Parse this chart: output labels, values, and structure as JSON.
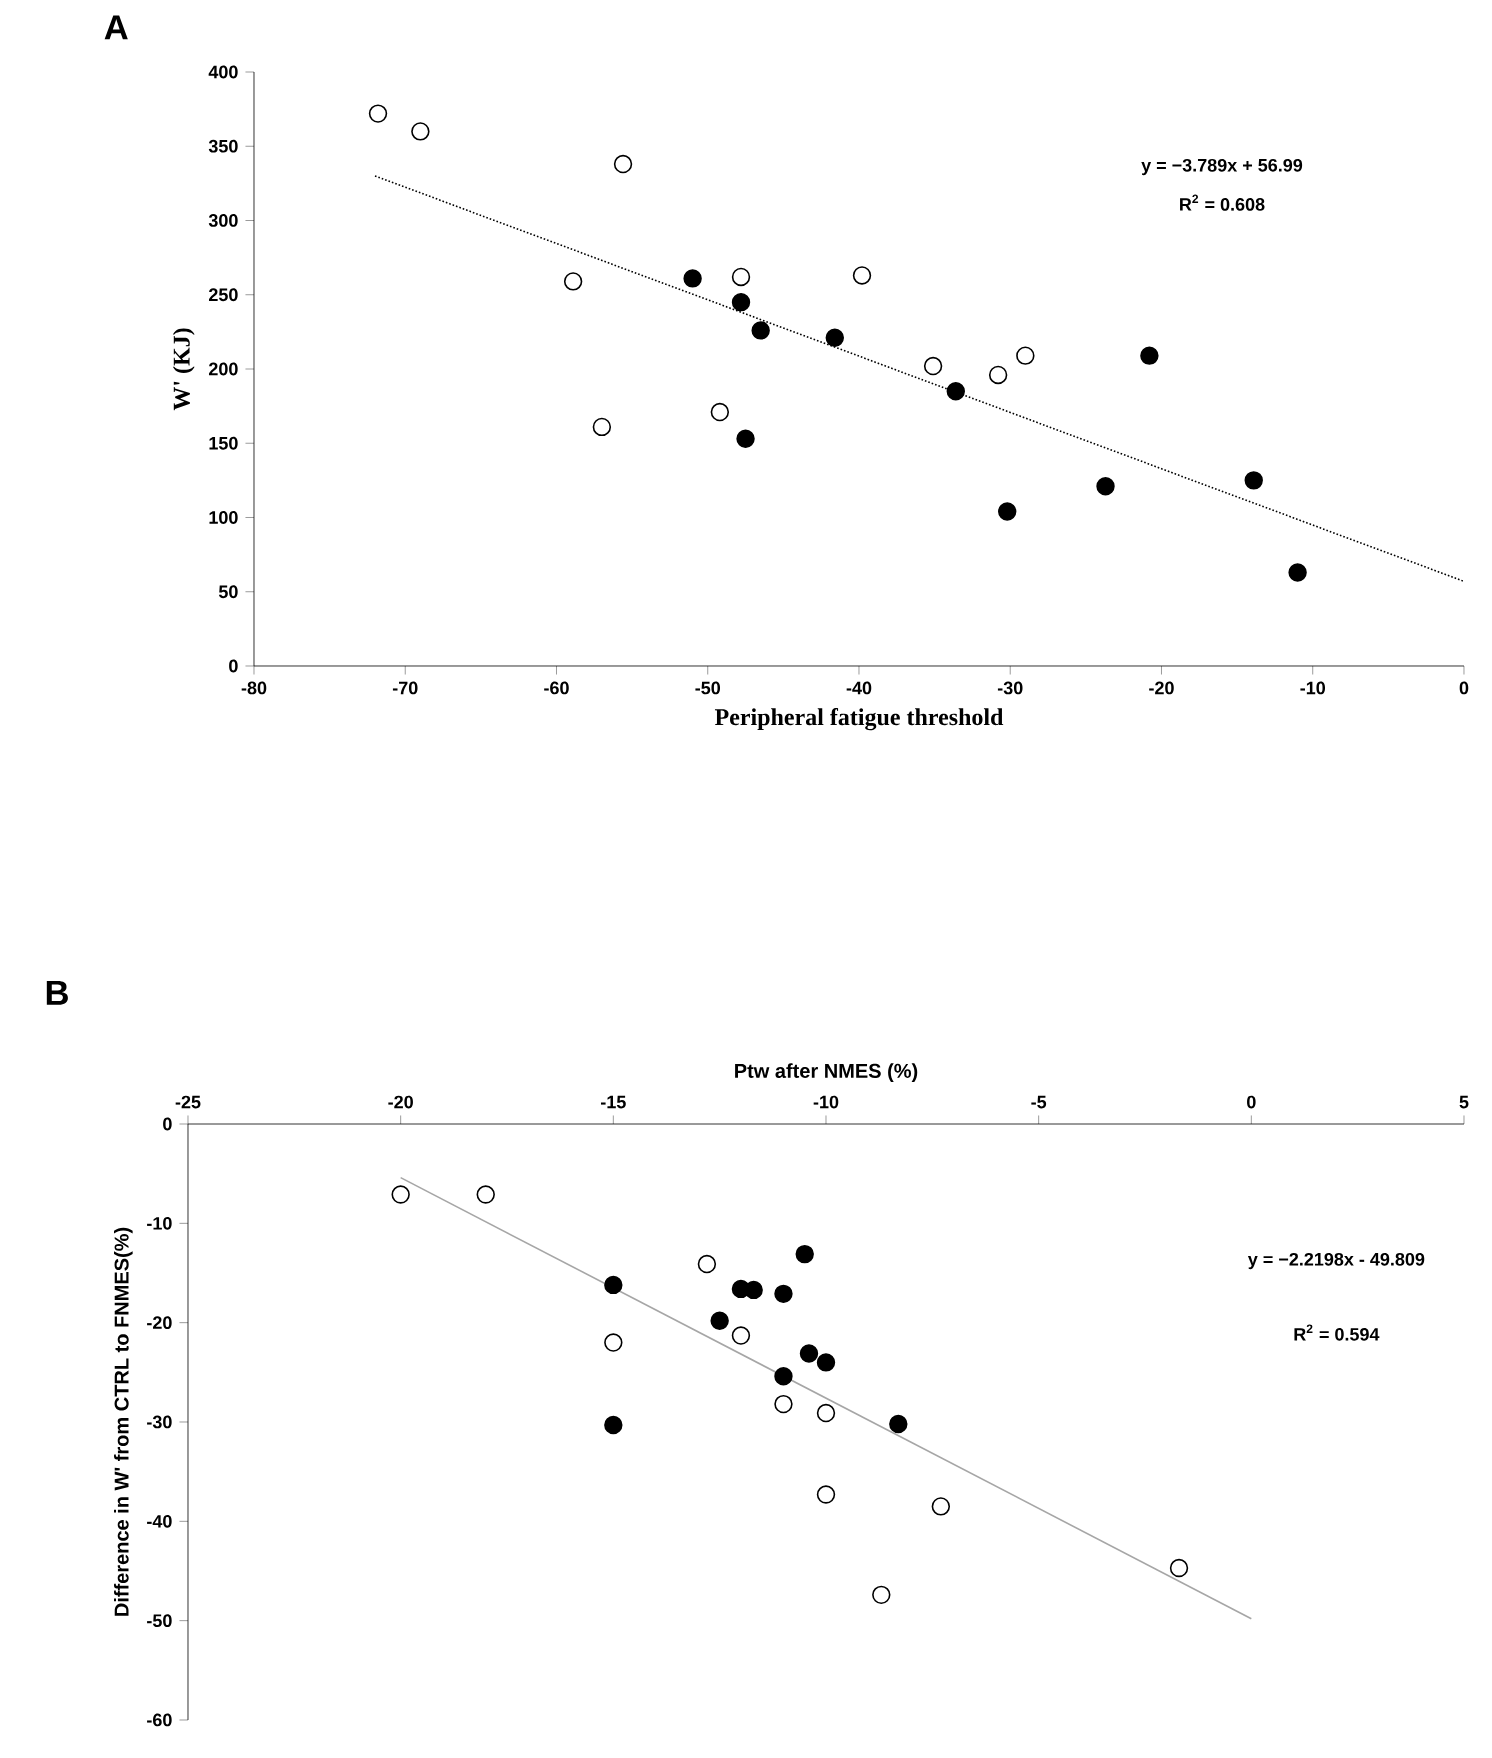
{
  "chart_data": [
    {
      "type": "scatter",
      "title": "A",
      "xlabel": "Peripheral fatigue threshold",
      "ylabel": "W' (KJ)",
      "marker": "circle",
      "grid": false,
      "xlim": [
        -80,
        0
      ],
      "xticks": [
        -80,
        -70,
        -60,
        -50,
        -40,
        -30,
        -20,
        -10,
        0
      ],
      "ylim": [
        0,
        400
      ],
      "yticks": [
        0,
        50,
        100,
        150,
        200,
        250,
        300,
        350,
        400
      ],
      "annotations": [
        "y = −3.789x + 56.99",
        "R$^{2}$ = 0.608"
      ],
      "series": [
        {
          "color": "#ffffff",
          "x": [
            -71.8,
            -69.0,
            -55.6,
            -58.9,
            -57.0,
            -47.8,
            -49.2,
            -39.8,
            -35.1,
            -30.8,
            -29.0
          ],
          "values": [
            372,
            360,
            338,
            259,
            161,
            262,
            171,
            263,
            202,
            196,
            209
          ]
        },
        {
          "color": "#000000",
          "x": [
            -51.0,
            -47.8,
            -46.5,
            -41.6,
            -47.5,
            -33.6,
            -30.2,
            -23.7,
            -20.8,
            -13.9,
            -11.0
          ],
          "values": [
            261,
            245,
            226,
            221,
            153,
            185,
            104,
            121,
            209,
            125,
            63
          ]
        },
        {
          "type": "line",
          "color": "#000000",
          "line_style": "dotted",
          "marker": "none",
          "x": [
            -72,
            0
          ],
          "values": [
            330,
            57
          ]
        }
      ]
    },
    {
      "type": "scatter",
      "title": "B",
      "xlabel": "Ptw after NMES (%)",
      "ylabel": "Difference in W' from CTRL to FNMES(%)",
      "marker": "circle",
      "grid": false,
      "xlim": [
        -25,
        5
      ],
      "xticks": [
        -25,
        -20,
        -15,
        -10,
        -5,
        0,
        5
      ],
      "ylim": [
        -60,
        0
      ],
      "yticks": [
        -60,
        -50,
        -40,
        -30,
        -20,
        -10,
        0
      ],
      "annotations": [
        "y = −2.2198x - 49.809",
        "R$^{2}$ = 0.594"
      ],
      "series": [
        {
          "color": "#ffffff",
          "x": [
            -20.0,
            -18.0,
            -12.8,
            -15.0,
            -12.0,
            -11.0,
            -10.0,
            -10.0,
            -7.3,
            -8.7,
            -1.7
          ],
          "values": [
            -7.1,
            -7.1,
            -14.1,
            -22.0,
            -21.3,
            -28.2,
            -29.1,
            -37.3,
            -38.5,
            -47.4,
            -44.7
          ]
        },
        {
          "color": "#000000",
          "x": [
            -15.0,
            -15.0,
            -12.5,
            -12.0,
            -11.7,
            -11.0,
            -10.5,
            -10.4,
            -10.0,
            -11.0,
            -8.3
          ],
          "values": [
            -16.2,
            -30.3,
            -19.8,
            -16.6,
            -16.7,
            -17.1,
            -13.1,
            -23.1,
            -24.0,
            -25.4,
            -30.2
          ]
        },
        {
          "type": "line",
          "color": "#a6a6a6",
          "line_style": "solid",
          "marker": "none",
          "x": [
            -20,
            0
          ],
          "values": [
            -5.4,
            -49.8
          ]
        }
      ]
    }
  ]
}
